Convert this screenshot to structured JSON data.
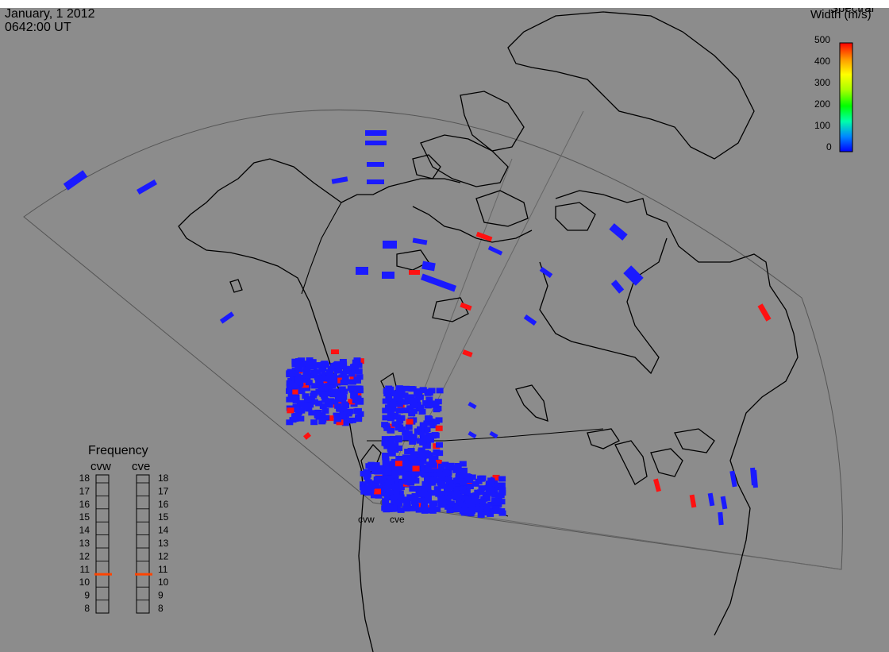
{
  "header": {
    "date": "January, 1 2012",
    "time": "0642:00 UT"
  },
  "colorbar": {
    "title_line1": "Spectral",
    "title_line2": "Width (m/s)",
    "ticks": [
      "500",
      "400",
      "300",
      "200",
      "100",
      "0"
    ],
    "colors": [
      "#0000ff",
      "#00aaff",
      "#00ffaa",
      "#00ff00",
      "#aaff00",
      "#ffff00",
      "#ffaa00",
      "#ff0000"
    ]
  },
  "stations": [
    {
      "code": "cvw"
    },
    {
      "code": "cve"
    }
  ],
  "frequency_panel": {
    "title": "Frequency",
    "columns": [
      "cvw",
      "cve"
    ],
    "scale": [
      "18",
      "17",
      "16",
      "15",
      "14",
      "13",
      "12",
      "11",
      "10",
      "9",
      "8"
    ],
    "unit_value": 10.8
  },
  "colors": {
    "background": "#8c8c8c",
    "low_width": "#1a1aff",
    "high_width": "#ff1111",
    "freq_marker": "#ff4400"
  }
}
